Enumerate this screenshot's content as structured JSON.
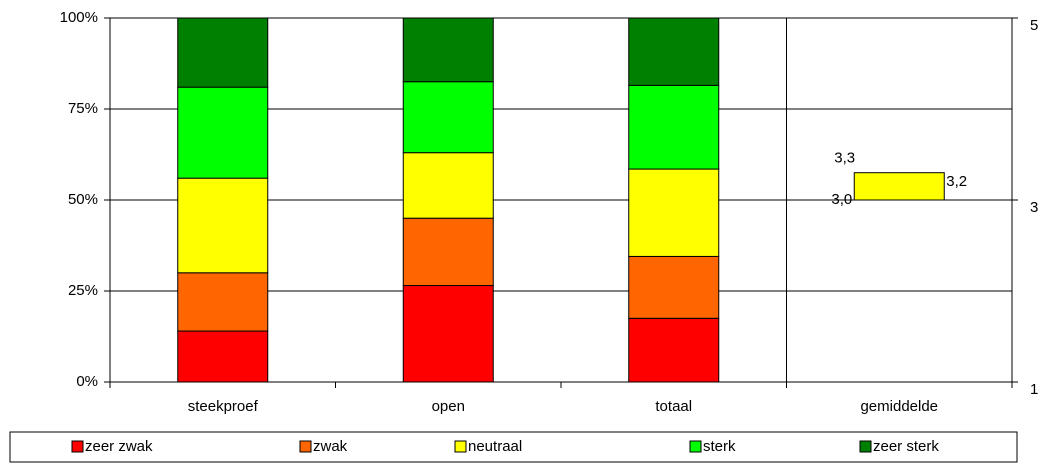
{
  "chart_data": {
    "type": "stacked_bar",
    "categories": [
      "steekproef",
      "open",
      "totaal",
      "gemiddelde"
    ],
    "series": [
      {
        "name": "zeer zwak",
        "color": "#ff0000",
        "values": [
          14,
          26.5,
          17.5,
          null
        ]
      },
      {
        "name": "zwak",
        "color": "#ff6600",
        "values": [
          16,
          18.5,
          17,
          null
        ]
      },
      {
        "name": "neutraal",
        "color": "#ffff00",
        "values": [
          26,
          18,
          24,
          null
        ]
      },
      {
        "name": "sterk",
        "color": "#00ff00",
        "values": [
          25,
          19.5,
          23,
          null
        ]
      },
      {
        "name": "zeer sterk",
        "color": "#008000",
        "values": [
          19,
          17.5,
          18.5,
          null
        ]
      }
    ],
    "gemiddelde": {
      "axis": "y2",
      "color": "#ffff00",
      "values": [
        3.0,
        3.3,
        3.2
      ],
      "value_labels": [
        "3,0",
        "3,3",
        "3,2"
      ]
    },
    "ylim": [
      0,
      100
    ],
    "yticks": [
      {
        "value": 0,
        "label": "0%"
      },
      {
        "value": 25,
        "label": "25%"
      },
      {
        "value": 50,
        "label": "50%"
      },
      {
        "value": 75,
        "label": "75%"
      },
      {
        "value": 100,
        "label": "100%"
      }
    ],
    "y2lim": [
      1,
      5
    ],
    "y2ticks": [
      1,
      3,
      5
    ],
    "grid": true,
    "legend": "bottom"
  }
}
